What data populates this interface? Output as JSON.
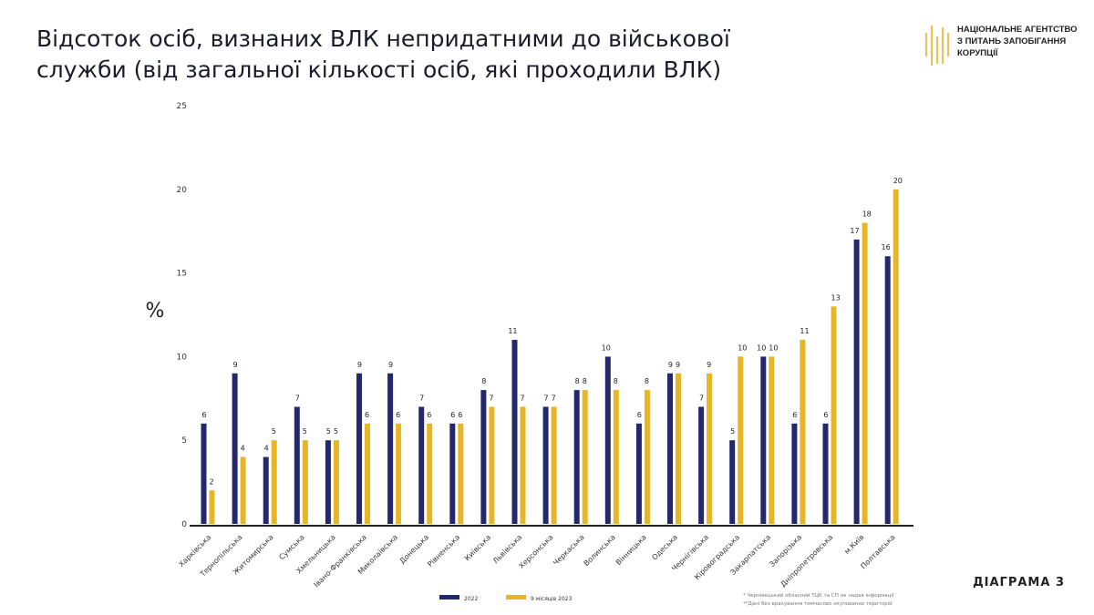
{
  "title": "Відсоток осіб, визнаних ВЛК непридатними до військової служби (від загальної кількості осіб, які проходили ВЛК)",
  "logo": {
    "lines": [
      "НАЦІОНАЛЬНЕ АГЕНТСТВО",
      "З ПИТАНЬ ЗАПОБІГАННЯ",
      "КОРУПЦІЇ"
    ]
  },
  "diagram_label": "ДІАГРАМА 3",
  "footnotes": [
    "* Чернівецький обласний ТЦК та СП не надав інформації",
    "**Дані без врахування тимчасово окупованих територій"
  ],
  "colors": {
    "series_2022": "#23276b",
    "series_2023": "#e8b526"
  },
  "chart_data": {
    "type": "bar",
    "title": "Відсоток осіб, визнаних ВЛК непридатними до військової служби (від загальної кількості осіб, які проходили ВЛК)",
    "ylabel": "%",
    "xlabel": "",
    "ylim": [
      0,
      25
    ],
    "yticks": [
      0,
      5,
      10,
      15,
      20,
      25
    ],
    "grid": false,
    "legend": "bottom",
    "categories": [
      "Харківська",
      "Тернопільська",
      "Житомирська",
      "Сумська",
      "Хмельницька",
      "Івано-Франківська",
      "Миколаївська",
      "Донецька",
      "Рівненська",
      "Київська",
      "Львівська",
      "Херсонська",
      "Черкаська",
      "Волинська",
      "Вінницька",
      "Одеська",
      "Чернігівська",
      "Кіровоградська",
      "Закарпатська",
      "Запорізька",
      "Дніпропетровська",
      "м.Київ",
      "Полтавська"
    ],
    "series": [
      {
        "name": "2022",
        "values": [
          6,
          9,
          4,
          7,
          5,
          9,
          9,
          7,
          6,
          8,
          11,
          7,
          8,
          10,
          6,
          9,
          7,
          5,
          10,
          6,
          6,
          17,
          16
        ]
      },
      {
        "name": "9 місяців 2023",
        "values": [
          2,
          4,
          5,
          5,
          5,
          6,
          6,
          6,
          6,
          7,
          7,
          7,
          8,
          8,
          8,
          9,
          9,
          10,
          10,
          11,
          13,
          18,
          20
        ]
      }
    ]
  }
}
